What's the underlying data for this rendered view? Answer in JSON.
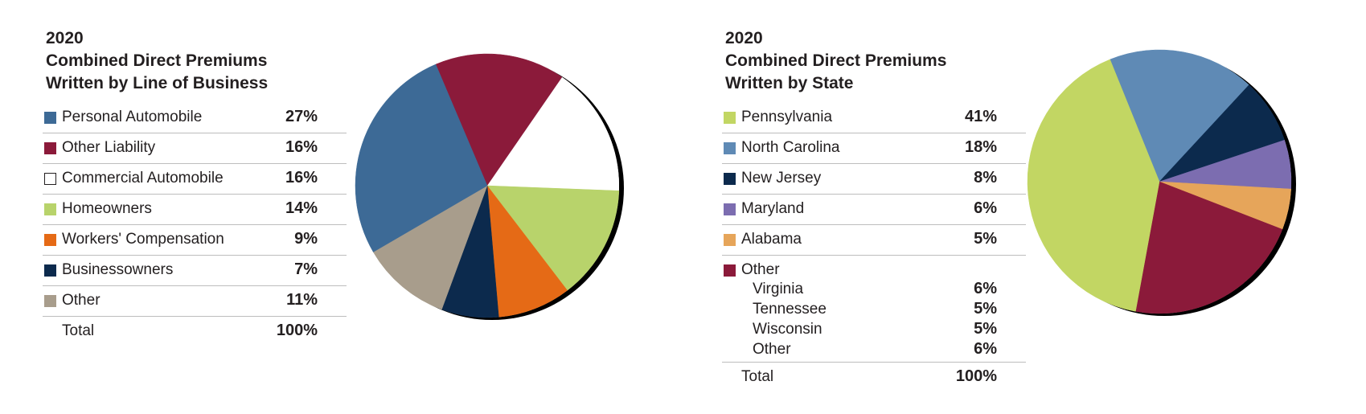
{
  "chart_data": [
    {
      "type": "pie",
      "title_lines": [
        "2020",
        "Combined Direct Premiums",
        "Written by Line of Business"
      ],
      "slices": [
        {
          "label": "Personal Automobile",
          "value": 27,
          "display": "27%",
          "color": "#3d6a96"
        },
        {
          "label": "Other Liability",
          "value": 16,
          "display": "16%",
          "color": "#8b1a3a"
        },
        {
          "label": "Commercial Automobile",
          "value": 16,
          "display": "16%",
          "color": "#ffffff"
        },
        {
          "label": "Homeowners",
          "value": 14,
          "display": "14%",
          "color": "#b8d36b"
        },
        {
          "label": "Workers' Compensation",
          "value": 9,
          "display": "9%",
          "color": "#e56a16"
        },
        {
          "label": "Businessowners",
          "value": 7,
          "display": "7%",
          "color": "#0c2a4d"
        },
        {
          "label": "Other",
          "value": 11,
          "display": "11%",
          "color": "#a89d8c"
        }
      ],
      "pie_order": [
        "Other Liability",
        "Commercial Automobile",
        "Homeowners",
        "Workers' Compensation",
        "Businessowners",
        "Other",
        "Personal Automobile"
      ],
      "pie_start_deg": -23,
      "total": {
        "label": "Total",
        "display": "100%"
      }
    },
    {
      "type": "pie",
      "title_lines": [
        "2020",
        "Combined Direct Premiums",
        "Written by State"
      ],
      "slices": [
        {
          "label": "Pennsylvania",
          "value": 41,
          "display": "41%",
          "color": "#c2d663"
        },
        {
          "label": "North Carolina",
          "value": 18,
          "display": "18%",
          "color": "#5f8ab5"
        },
        {
          "label": "New Jersey",
          "value": 8,
          "display": "8%",
          "color": "#0c2a4d"
        },
        {
          "label": "Maryland",
          "value": 6,
          "display": "6%",
          "color": "#7c6db0"
        },
        {
          "label": "Alabama",
          "value": 5,
          "display": "5%",
          "color": "#e6a55a"
        },
        {
          "label": "Other",
          "value": 22,
          "display": "",
          "color": "#8b1a3a",
          "breakdown": [
            {
              "label": "Virginia",
              "display": "6%"
            },
            {
              "label": "Tennessee",
              "display": "5%"
            },
            {
              "label": "Wisconsin",
              "display": "5%"
            },
            {
              "label": "Other",
              "display": "6%"
            }
          ]
        }
      ],
      "pie_order": [
        "North Carolina",
        "New Jersey",
        "Maryland",
        "Alabama",
        "Other",
        "Pennsylvania"
      ],
      "pie_start_deg": -22,
      "total": {
        "label": "Total",
        "display": "100%"
      }
    }
  ]
}
